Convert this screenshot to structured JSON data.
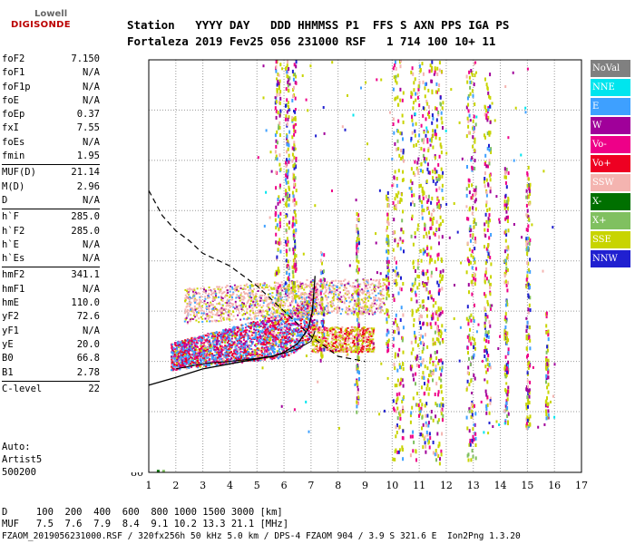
{
  "brand": {
    "line1": "Lowell",
    "line2": "DIGISONDE"
  },
  "header": {
    "labels": "Station   YYYY DAY   DDD HHMMSS P1  FFS S AXN PPS IGA PS",
    "values": "Fortaleza 2019 Fev25 056 231000 RSF   1 714 100 10+ 11"
  },
  "params": [
    {
      "name": "foF2",
      "value": "7.150"
    },
    {
      "name": "foF1",
      "value": "N/A"
    },
    {
      "name": "foF1p",
      "value": "N/A"
    },
    {
      "name": "foE",
      "value": "N/A"
    },
    {
      "name": "foEp",
      "value": "0.37"
    },
    {
      "name": "fxI",
      "value": "7.55"
    },
    {
      "name": "foEs",
      "value": "N/A"
    },
    {
      "name": "fmin",
      "value": "1.95"
    },
    {
      "name": "MUF(D)",
      "value": "21.14"
    },
    {
      "name": "M(D)",
      "value": "2.96"
    },
    {
      "name": "D",
      "value": "N/A"
    },
    {
      "name": "h`F",
      "value": "285.0"
    },
    {
      "name": "h`F2",
      "value": "285.0"
    },
    {
      "name": "h`E",
      "value": "N/A"
    },
    {
      "name": "h`Es",
      "value": "N/A"
    },
    {
      "name": "hmF2",
      "value": "341.1"
    },
    {
      "name": "hmF1",
      "value": "N/A"
    },
    {
      "name": "hmE",
      "value": "110.0"
    },
    {
      "name": "yF2",
      "value": "72.6"
    },
    {
      "name": "yF1",
      "value": "N/A"
    },
    {
      "name": "yE",
      "value": "20.0"
    },
    {
      "name": "B0",
      "value": "66.8"
    },
    {
      "name": "B1",
      "value": "2.78"
    },
    {
      "name": "C-level",
      "value": "22"
    }
  ],
  "auto": {
    "line1": "Auto:",
    "line2": "Artist5",
    "line3": "500200"
  },
  "footer": {
    "d_row": "D     100  200  400  600  800 1000 1500 3000 [km]",
    "muf_row": "MUF   7.5  7.6  7.9  8.4  9.1 10.2 13.3 21.1 [MHz]",
    "file_row": "FZAOM_2019056231000.RSF / 320fx256h 50 kHz 5.0 km / DPS-4 FZAOM 904 / 3.9 S 321.6 E  Ion2Png 1.3.20"
  },
  "legend": [
    {
      "label": "NoVal",
      "color": "#808080"
    },
    {
      "label": "NNE",
      "color": "#00e5ee"
    },
    {
      "label": "E",
      "color": "#3ea0ff"
    },
    {
      "label": "W",
      "color": "#a0009a"
    },
    {
      "label": "Vo-",
      "color": "#ee0088"
    },
    {
      "label": "Vo+",
      "color": "#ee0022"
    },
    {
      "label": "SSW",
      "color": "#f4b4b0"
    },
    {
      "label": "X-",
      "color": "#007000"
    },
    {
      "label": "X+",
      "color": "#80c060"
    },
    {
      "label": "SSE",
      "color": "#c8d400"
    },
    {
      "label": "NNW",
      "color": "#2020d0"
    }
  ],
  "chart_data": {
    "type": "scatter",
    "xlim": [
      1,
      17
    ],
    "ylim": [
      80,
      900
    ],
    "x_ticks": [
      "1",
      "2",
      "3",
      "4",
      "5",
      "6",
      "7",
      "8",
      "9",
      "10",
      "11",
      "12",
      "13",
      "14",
      "15",
      "16",
      "17"
    ],
    "y_ticks": [
      "80",
      "200",
      "300",
      "400",
      "500",
      "600",
      "700",
      "800",
      "900"
    ],
    "grid": true,
    "legend_position": "right",
    "series": [
      {
        "name": "O-trace lower edge (h vs f)",
        "points": [
          [
            2,
            285
          ],
          [
            2.5,
            290
          ],
          [
            3,
            295
          ],
          [
            3.5,
            298
          ],
          [
            4,
            300
          ],
          [
            4.5,
            303
          ],
          [
            5,
            306
          ],
          [
            5.5,
            310
          ],
          [
            6,
            316
          ],
          [
            6.5,
            325
          ],
          [
            7,
            340
          ],
          [
            7.15,
            360
          ]
        ]
      },
      {
        "name": "electron density profile",
        "points": [
          [
            0.7,
            248
          ],
          [
            2,
            268
          ],
          [
            3,
            285
          ],
          [
            4,
            295
          ],
          [
            5,
            305
          ],
          [
            5.6,
            310
          ],
          [
            6,
            318
          ],
          [
            6.5,
            335
          ],
          [
            6.9,
            365
          ],
          [
            7.05,
            400
          ],
          [
            7.15,
            470
          ]
        ]
      },
      {
        "name": "MUF curve (dashed)",
        "points": [
          [
            1,
            640
          ],
          [
            1.5,
            590
          ],
          [
            2,
            560
          ],
          [
            2.5,
            540
          ],
          [
            3,
            515
          ],
          [
            4,
            490
          ],
          [
            5,
            450
          ],
          [
            6,
            400
          ],
          [
            7,
            350
          ],
          [
            8,
            310
          ],
          [
            9,
            300
          ]
        ]
      }
    ]
  }
}
